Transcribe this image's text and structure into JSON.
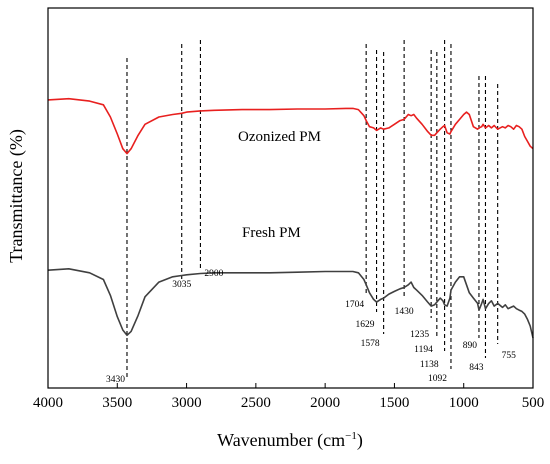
{
  "chart_data": {
    "type": "line",
    "xlabel": "Wavenumber (cm",
    "xlabel_sup": "−1",
    "xlabel_end": ")",
    "ylabel": "Transmittance (%)",
    "xlim": [
      4000,
      500
    ],
    "x_ticks": [
      "4000",
      "3500",
      "3000",
      "2500",
      "2000",
      "1500",
      "1000",
      "500"
    ],
    "y_ticks": "none",
    "grid": false,
    "legend": "none (series labelled directly on the plot)",
    "colors": {
      "ozonized": "#e8201f",
      "fresh": "#404040",
      "axis": "#000000",
      "marker_line": "#000000"
    },
    "series": [
      {
        "name": "Ozonized PM",
        "x": [
          4000,
          3850,
          3700,
          3600,
          3550,
          3500,
          3460,
          3430,
          3400,
          3350,
          3300,
          3200,
          3100,
          3035,
          3000,
          2900,
          2800,
          2600,
          2400,
          2200,
          2000,
          1850,
          1800,
          1760,
          1720,
          1704,
          1680,
          1650,
          1629,
          1600,
          1578,
          1540,
          1500,
          1460,
          1430,
          1400,
          1380,
          1360,
          1340,
          1300,
          1260,
          1235,
          1210,
          1194,
          1170,
          1150,
          1138,
          1120,
          1100,
          1092,
          1060,
          1030,
          1000,
          980,
          960,
          930,
          900,
          890,
          870,
          860,
          843,
          820,
          800,
          780,
          755,
          720,
          700,
          680,
          660,
          640,
          620,
          600,
          580,
          560,
          540,
          520,
          500
        ],
        "y": [
          96,
          97,
          95,
          92,
          82,
          68,
          56,
          52,
          56,
          67,
          76,
          82,
          84,
          85,
          86,
          87,
          87.5,
          88,
          88,
          88.5,
          88.5,
          89,
          89,
          88,
          83,
          79,
          74,
          73,
          71,
          73,
          72,
          73,
          76,
          79,
          80,
          84,
          83,
          84,
          81,
          76,
          70,
          67,
          67,
          69,
          72,
          74,
          75,
          69,
          68,
          70,
          76,
          80,
          84,
          86,
          84,
          74,
          72,
          73,
          74,
          76,
          73,
          75,
          73,
          75,
          72,
          74,
          73,
          75,
          74,
          72,
          75,
          74,
          72,
          66,
          62,
          58,
          56
        ]
      },
      {
        "name": "Fresh PM",
        "x": [
          4000,
          3850,
          3700,
          3600,
          3550,
          3500,
          3460,
          3430,
          3400,
          3350,
          3300,
          3200,
          3100,
          3035,
          3000,
          2900,
          2800,
          2600,
          2400,
          2200,
          2000,
          1850,
          1800,
          1760,
          1720,
          1704,
          1680,
          1650,
          1629,
          1600,
          1578,
          1540,
          1500,
          1460,
          1430,
          1400,
          1380,
          1360,
          1340,
          1300,
          1260,
          1235,
          1210,
          1194,
          1170,
          1150,
          1138,
          1120,
          1100,
          1092,
          1060,
          1030,
          1000,
          980,
          960,
          930,
          900,
          890,
          870,
          860,
          843,
          820,
          800,
          780,
          755,
          720,
          700,
          680,
          660,
          640,
          620,
          600,
          580,
          560,
          540,
          520,
          500
        ],
        "y": [
          51,
          52,
          49,
          44,
          32,
          16,
          6,
          2,
          5,
          17,
          31,
          42,
          46,
          47,
          47.5,
          48.5,
          49,
          49,
          49,
          49.5,
          50,
          50,
          50,
          49,
          44,
          40,
          34,
          29,
          27,
          29,
          30,
          33,
          35,
          37,
          38,
          40,
          42,
          38,
          36,
          32,
          27,
          24,
          25,
          27,
          30,
          28,
          25,
          24,
          30,
          36,
          42,
          46,
          46,
          40,
          34,
          30,
          26,
          21,
          26,
          29,
          22,
          26,
          28,
          24,
          26,
          23,
          25,
          22,
          23,
          24,
          22,
          21,
          20,
          18,
          14,
          9,
          0
        ]
      }
    ],
    "series_labels": [
      "Ozonized PM",
      "Fresh PM"
    ],
    "annotations": [
      {
        "text": "3430",
        "x": 3430
      },
      {
        "text": "3035",
        "x": 3035
      },
      {
        "text": "2900",
        "x": 2900
      },
      {
        "text": "1704",
        "x": 1704
      },
      {
        "text": "1629",
        "x": 1629
      },
      {
        "text": "1578",
        "x": 1578
      },
      {
        "text": "1430",
        "x": 1430
      },
      {
        "text": "1235",
        "x": 1235
      },
      {
        "text": "1194",
        "x": 1194
      },
      {
        "text": "1138",
        "x": 1138
      },
      {
        "text": "1092",
        "x": 1092
      },
      {
        "text": "890",
        "x": 890
      },
      {
        "text": "843",
        "x": 843
      },
      {
        "text": "755",
        "x": 755
      }
    ]
  }
}
